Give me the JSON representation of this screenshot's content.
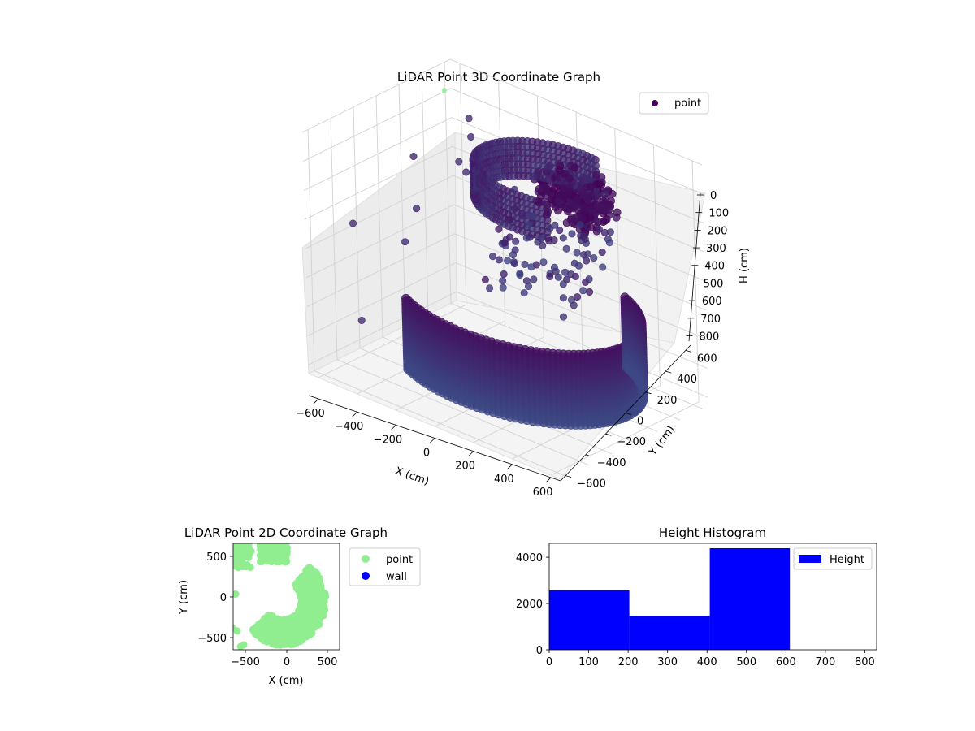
{
  "colors": {
    "point_dark": "#440154",
    "point_mid": "#3b528b",
    "point_2d": "#90ee90",
    "wall": "#0000ff",
    "hist": "#0000ff"
  },
  "chart_data": [
    {
      "type": "scatter",
      "title": "LiDAR Point 3D Coordinate Graph",
      "xlabel": "X (cm)",
      "ylabel": "Y (cm)",
      "zlabel": "H (cm)",
      "xticks": [
        "−600",
        "−400",
        "−200",
        "0",
        "200",
        "400",
        "600"
      ],
      "yticks": [
        "−600",
        "−400",
        "−200",
        "0",
        "200",
        "400",
        "600"
      ],
      "zticks": [
        "0",
        "100",
        "200",
        "300",
        "400",
        "500",
        "600",
        "700",
        "800"
      ],
      "xlim": [
        -650,
        650
      ],
      "ylim": [
        -650,
        650
      ],
      "zlim": [
        0,
        830
      ],
      "zinverted": true,
      "legend": {
        "placement": "top-right",
        "entries": [
          "point"
        ]
      },
      "grid": true
    },
    {
      "type": "scatter",
      "title": "LiDAR Point 2D Coordinate Graph",
      "xlabel": "X (cm)",
      "ylabel": "Y (cm)",
      "xticks": [
        "−500",
        "0",
        "500"
      ],
      "yticks": [
        "500",
        "0",
        "−500"
      ],
      "xlim": [
        -650,
        650
      ],
      "ylim": [
        -650,
        650
      ],
      "legend": {
        "placement": "outside-right",
        "entries": [
          "point",
          "wall"
        ]
      },
      "grid": false
    },
    {
      "type": "bar",
      "title": "Height Histogram",
      "xticks": [
        "0",
        "100",
        "200",
        "300",
        "400",
        "500",
        "600",
        "700",
        "800"
      ],
      "yticks": [
        "0",
        "2000",
        "4000"
      ],
      "xlim": [
        0,
        830
      ],
      "ylim": [
        0,
        4600
      ],
      "bins": [
        {
          "x0": 0,
          "x1": 203,
          "count": 2570
        },
        {
          "x0": 203,
          "x1": 407,
          "count": 1460
        },
        {
          "x0": 407,
          "x1": 610,
          "count": 4390
        }
      ],
      "legend": {
        "placement": "top-right",
        "entries": [
          "Height"
        ]
      },
      "grid": false
    }
  ]
}
